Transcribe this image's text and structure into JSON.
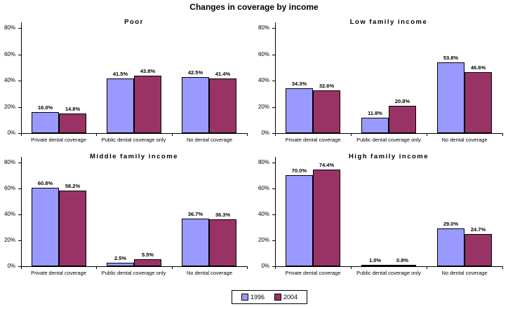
{
  "chart_data": {
    "type": "bar",
    "title": "Changes in coverage by income",
    "categories": [
      "Private dental coverage",
      "Public dental coverage only",
      "No dental coverage"
    ],
    "series_names": [
      "1996",
      "2004"
    ],
    "series_colors": [
      "#9999FF",
      "#993366"
    ],
    "panels": [
      {
        "title": "Poor",
        "series": [
          {
            "name": "1996",
            "values": [
              16.0,
              41.5,
              42.5
            ]
          },
          {
            "name": "2004",
            "values": [
              14.8,
              43.8,
              41.4
            ]
          }
        ],
        "data_labels": [
          [
            "16.0%",
            "41.5%",
            "42.5%"
          ],
          [
            "14.8%",
            "43.8%",
            "41.4%"
          ]
        ]
      },
      {
        "title": "Low family income",
        "series": [
          {
            "name": "1996",
            "values": [
              34.3,
              11.8,
              53.8
            ]
          },
          {
            "name": "2004",
            "values": [
              32.6,
              20.8,
              46.6
            ]
          }
        ],
        "data_labels": [
          [
            "34.3%",
            "11.8%",
            "53.8%"
          ],
          [
            "32.6%",
            "20.8%",
            "46.6%"
          ]
        ]
      },
      {
        "title": "Middle family income",
        "series": [
          {
            "name": "1996",
            "values": [
              60.8,
              2.5,
              36.7
            ]
          },
          {
            "name": "2004",
            "values": [
              58.2,
              5.5,
              36.3
            ]
          }
        ],
        "data_labels": [
          [
            "60.8%",
            "2.5%",
            "36.7%"
          ],
          [
            "58.2%",
            "5.5%",
            "36.3%"
          ]
        ]
      },
      {
        "title": "High family income",
        "series": [
          {
            "name": "1996",
            "values": [
              70.0,
              1.0,
              29.0
            ]
          },
          {
            "name": "2004",
            "values": [
              74.4,
              0.8,
              24.7
            ]
          }
        ],
        "data_labels": [
          [
            "70.0%",
            "1.0%",
            "29.0%"
          ],
          [
            "74.4%",
            "0.8%",
            "24.7%"
          ]
        ]
      }
    ],
    "ylim": [
      0,
      80
    ],
    "y_tick_labels": [
      "0%",
      "20%",
      "40%",
      "60%",
      "80%"
    ],
    "grid": false,
    "legend": {
      "position": "bottom-center",
      "entries": [
        "1996",
        "2004"
      ]
    }
  },
  "colors": {
    "series_1996": "#9999FF",
    "series_2004": "#993366",
    "axis": "#000000",
    "background": "#FFFFFF"
  }
}
